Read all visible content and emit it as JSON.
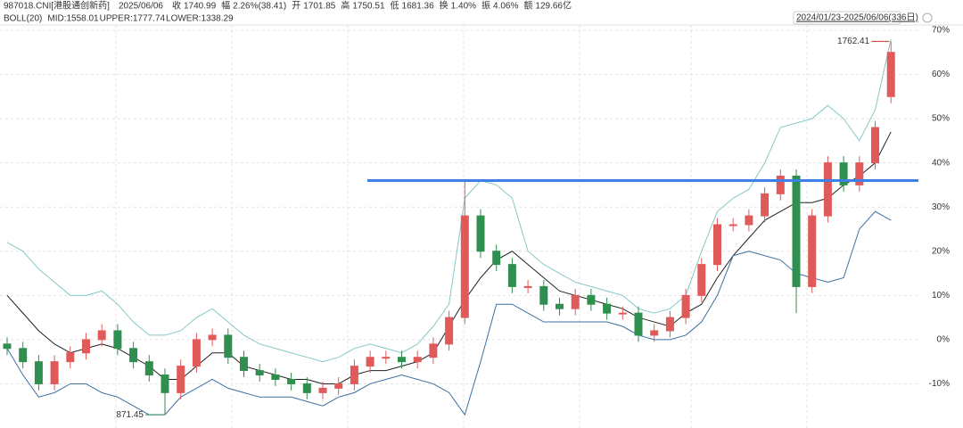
{
  "chart_data": {
    "type": "candlestick",
    "header": [
      "987018.CNI[港股通创新药]",
      "2025/06/06",
      "收",
      "1740.99",
      "幅",
      "2.26%(38.41)",
      "开",
      "1701.85",
      "高",
      "1750.51",
      "低",
      "1681.36",
      "换",
      "1.40%",
      "振",
      "4.06%",
      "额",
      "129.66亿"
    ],
    "indicator": [
      "BOLL(20)",
      "MID:1558.01",
      "UPPER:1777.74",
      "LOWER:1338.29"
    ],
    "date_range": "2024/01/23-2025/06/06(336日)",
    "ylim": [
      -20,
      71.2
    ],
    "yticks": [
      {
        "value": -10,
        "label": "-10%"
      },
      {
        "value": 0,
        "label": "0%"
      },
      {
        "value": 10,
        "label": "10%"
      },
      {
        "value": 20,
        "label": "20%"
      },
      {
        "value": 30,
        "label": "30%"
      },
      {
        "value": 40,
        "label": "40%"
      },
      {
        "value": 50,
        "label": "50%"
      },
      {
        "value": 60,
        "label": "60%"
      },
      {
        "value": 70,
        "label": "70%"
      }
    ],
    "up_color": "#e05a5a",
    "down_color": "#2f8f4e",
    "hline": {
      "value": 36,
      "color": "#3c82e6"
    },
    "annotations": [
      {
        "text": "1762.41",
        "index": 56,
        "color": "#c0392b"
      },
      {
        "text": "871.45",
        "index": 10,
        "color": "#2f8f4e"
      }
    ],
    "open": [
      -1,
      -2,
      -5,
      -10,
      -5,
      -3,
      0,
      2,
      -2,
      -5,
      -8,
      -12,
      -6,
      0,
      1,
      -4,
      -7,
      -8,
      -9,
      -10,
      -12,
      -11,
      -10,
      -6,
      -4,
      -4,
      -5,
      -4,
      -1,
      5,
      28,
      20,
      17,
      12,
      12,
      8,
      7,
      10,
      8,
      6,
      6,
      1,
      2,
      5,
      10,
      17,
      26,
      26,
      28,
      33,
      37,
      12,
      28,
      40,
      35,
      40,
      55
    ],
    "high": [
      0.5,
      -0.5,
      -3.5,
      -3.5,
      -1.5,
      1.5,
      3.5,
      3.5,
      -0.5,
      -3.5,
      -6.5,
      -4.5,
      1.5,
      2.5,
      2.5,
      -2.5,
      -5.5,
      -6.5,
      -7.5,
      -8.5,
      -9.5,
      -8.5,
      -4.5,
      -2.5,
      -2.5,
      -2.5,
      -2.5,
      0.5,
      6.5,
      36,
      29.5,
      21.5,
      18.5,
      13.5,
      13.5,
      9.5,
      11.5,
      11.5,
      9.5,
      7.5,
      7.5,
      3.5,
      6.5,
      11.5,
      18.5,
      27.5,
      27.5,
      29.5,
      34.5,
      38.5,
      38.5,
      29.5,
      41.5,
      41.5,
      41.5,
      49.5,
      67.5
    ],
    "low": [
      -3.5,
      -6.5,
      -11.5,
      -11.5,
      -6.5,
      -4.5,
      -1.5,
      -3.5,
      -6.5,
      -9.5,
      -17,
      -13.5,
      -7.5,
      -1.5,
      -5.5,
      -8.5,
      -9.5,
      -10.5,
      -11.5,
      -13.5,
      -13.5,
      -12.5,
      -11.5,
      -7.5,
      -5.5,
      -6.5,
      -6.5,
      -5.5,
      -2.5,
      3.5,
      18.5,
      15.5,
      10.5,
      10.5,
      6.5,
      5.5,
      5.5,
      6.5,
      4.5,
      4.5,
      -0.5,
      -0.5,
      0.5,
      3.5,
      8.5,
      15.5,
      24.5,
      24.5,
      26.5,
      31.5,
      6,
      10.5,
      26.5,
      33.5,
      33.5,
      38.5,
      53.5
    ],
    "close": [
      -2,
      -5,
      -10,
      -5,
      -3,
      0,
      2,
      -2,
      -5,
      -8,
      -12,
      -6,
      0,
      1,
      -4,
      -7,
      -8,
      -9,
      -10,
      -12,
      -11,
      -10,
      -6,
      -4,
      -4,
      -5,
      -4,
      -1,
      5,
      28,
      20,
      17,
      12,
      12,
      8,
      7,
      10,
      8,
      6,
      6,
      1,
      2,
      5,
      10,
      17,
      26,
      26,
      28,
      33,
      37,
      12,
      28,
      40,
      35,
      40,
      48,
      65
    ],
    "series": [
      {
        "name": "MID",
        "color": "#222222",
        "values": [
          10,
          6,
          2,
          -1,
          -3,
          -2,
          -1,
          -2,
          -4,
          -6,
          -9,
          -9,
          -6,
          -3,
          -3,
          -6,
          -7,
          -8,
          -9,
          -9,
          -10,
          -10,
          -8,
          -7,
          -7,
          -6,
          -5,
          -3,
          3,
          9,
          14,
          18,
          20,
          17,
          14,
          11,
          10,
          9,
          8,
          7,
          5,
          4,
          3,
          6,
          8,
          14,
          19,
          23,
          27,
          29,
          31,
          31,
          32,
          35,
          37,
          40,
          47
        ]
      },
      {
        "name": "UPPER",
        "color": "#86c8c8",
        "values": [
          22,
          20,
          16,
          13,
          10,
          10,
          11,
          8,
          4,
          1,
          1,
          2,
          5,
          7,
          4,
          1,
          -1,
          -2,
          -3,
          -4,
          -5,
          -4,
          -2,
          -1,
          -2,
          -3,
          -1,
          3,
          8,
          32,
          36,
          35,
          32,
          20,
          17,
          15,
          13,
          12,
          11,
          10,
          7,
          6,
          7,
          10,
          20,
          29,
          32,
          34,
          40,
          48,
          49,
          50,
          53,
          50,
          45,
          52,
          68
        ]
      },
      {
        "name": "LOWER",
        "color": "#3d6fa3",
        "values": [
          -2,
          -8,
          -13,
          -12,
          -10,
          -10,
          -12,
          -13,
          -15,
          -17,
          -17,
          -13,
          -11,
          -9,
          -11,
          -12,
          -13,
          -13,
          -13,
          -14,
          -15,
          -13,
          -12,
          -10,
          -9,
          -8,
          -9,
          -10,
          -12,
          -17,
          -5,
          8,
          8,
          6,
          4,
          4,
          4,
          4,
          4,
          3,
          1,
          0,
          0,
          1,
          4,
          10,
          19,
          20,
          19,
          18,
          15,
          14,
          13,
          14,
          25,
          29,
          27
        ]
      }
    ]
  }
}
